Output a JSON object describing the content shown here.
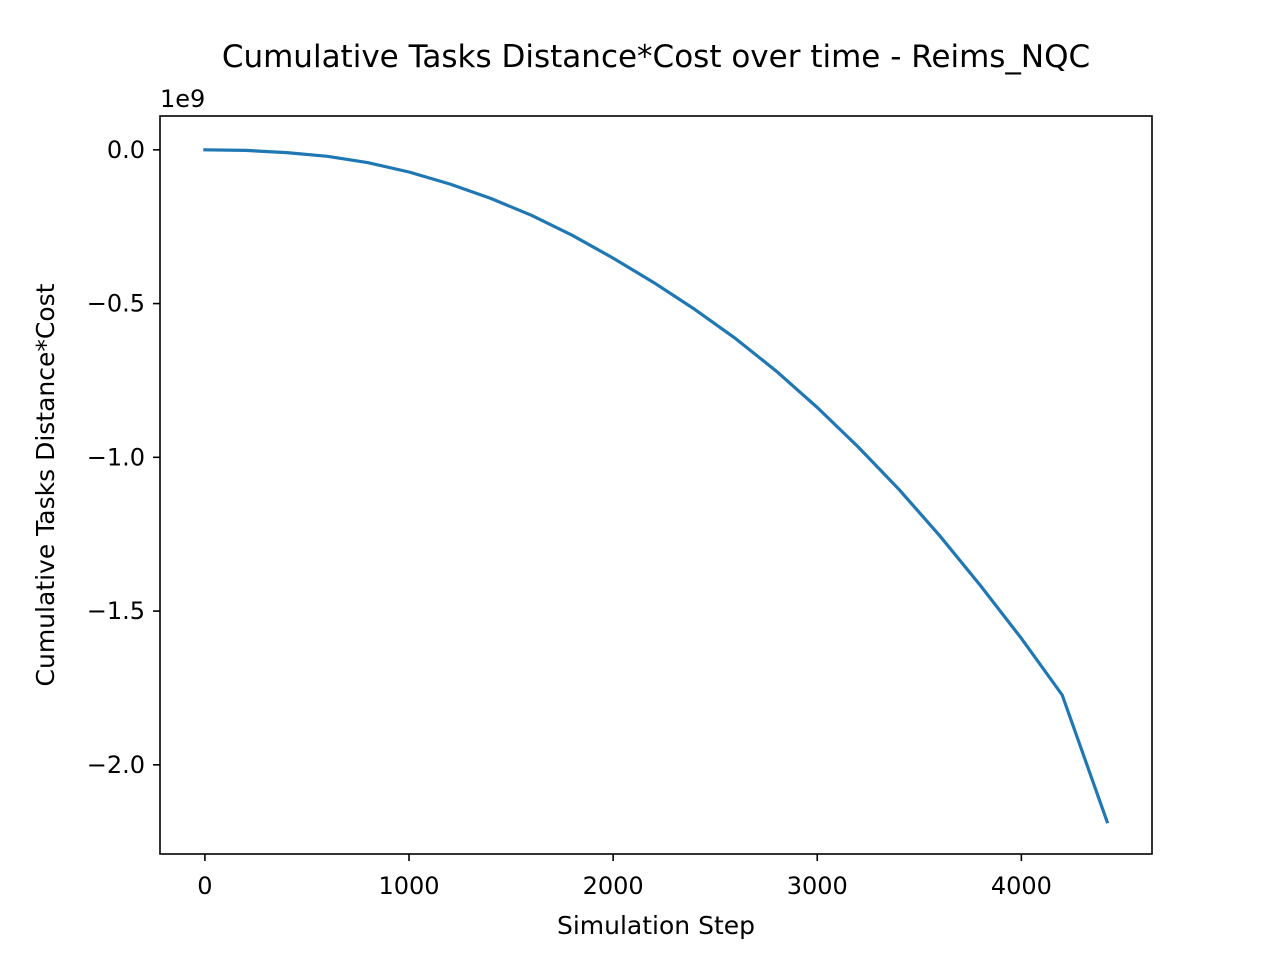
{
  "chart_data": {
    "type": "line",
    "title": "Cumulative Tasks Distance*Cost over time - Reims_NQC",
    "xlabel": "Simulation Step",
    "ylabel": "Cumulative Tasks Distance*Cost",
    "y_offset_label": "1e9",
    "xlim": [
      -220,
      4640
    ],
    "ylim": [
      -2.29,
      0.11
    ],
    "x_ticks": [
      0,
      1000,
      2000,
      3000,
      4000
    ],
    "x_tick_labels": [
      "0",
      "1000",
      "2000",
      "3000",
      "4000"
    ],
    "y_ticks": [
      0.0,
      -0.5,
      -1.0,
      -1.5,
      -2.0
    ],
    "y_tick_labels": [
      "0.0",
      "−0.5",
      "−1.0",
      "−1.5",
      "−2.0"
    ],
    "grid": false,
    "series": [
      {
        "color": "#1f77b4",
        "x": [
          0,
          200,
          400,
          600,
          800,
          1000,
          1200,
          1400,
          1600,
          1800,
          2000,
          2200,
          2400,
          2600,
          2800,
          3000,
          3200,
          3400,
          3600,
          3800,
          4000,
          4200,
          4420
        ],
        "y": [
          0.0,
          -0.002,
          -0.009,
          -0.021,
          -0.042,
          -0.072,
          -0.111,
          -0.158,
          -0.213,
          -0.278,
          -0.352,
          -0.432,
          -0.519,
          -0.614,
          -0.72,
          -0.838,
          -0.966,
          -1.104,
          -1.255,
          -1.417,
          -1.589,
          -1.773,
          -2.185
        ]
      }
    ]
  }
}
